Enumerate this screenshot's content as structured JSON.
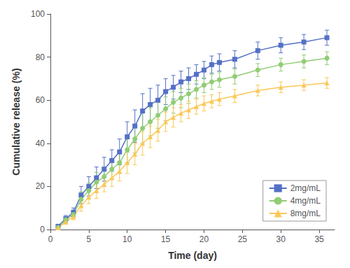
{
  "chart_data": {
    "type": "line",
    "xlabel": "Time (day)",
    "ylabel": "Cumulative release (%)",
    "xlim": [
      0,
      37
    ],
    "ylim": [
      0,
      100
    ],
    "xticks": [
      0,
      5,
      10,
      15,
      20,
      25,
      30,
      35
    ],
    "yticks": [
      0,
      20,
      40,
      60,
      80,
      100
    ],
    "grid": false,
    "legend": "lower right",
    "series": [
      {
        "name": "2mg/mL",
        "marker": "square",
        "x": [
          1,
          2,
          3,
          4,
          5,
          6,
          7,
          8,
          9,
          10,
          11,
          12,
          13,
          14,
          15,
          16,
          17,
          18,
          19,
          20,
          21,
          22,
          24,
          27,
          30,
          33,
          36
        ],
        "values": [
          1.5,
          5.0,
          8.0,
          16.0,
          20.0,
          24.0,
          28.0,
          32.0,
          36.0,
          43.0,
          48.0,
          55.0,
          58.0,
          60.0,
          64.0,
          66.0,
          68.5,
          70.0,
          72.0,
          74.0,
          76.5,
          77.5,
          79.0,
          83.0,
          85.5,
          87.0,
          89.0
        ],
        "yerr": [
          0.5,
          1.5,
          2.0,
          4.0,
          4.5,
          5.0,
          5.5,
          5.0,
          6.0,
          7.0,
          7.5,
          8.0,
          7.5,
          7.0,
          6.0,
          5.5,
          5.0,
          5.0,
          4.5,
          4.0,
          4.0,
          4.0,
          4.0,
          4.0,
          3.5,
          3.5,
          3.5
        ]
      },
      {
        "name": "4mg/mL",
        "marker": "circle",
        "x": [
          1,
          2,
          3,
          4,
          5,
          6,
          7,
          8,
          9,
          10,
          11,
          12,
          13,
          14,
          15,
          16,
          17,
          18,
          19,
          20,
          21,
          22,
          24,
          27,
          30,
          33,
          36
        ],
        "values": [
          1.0,
          4.5,
          7.0,
          14.0,
          18.0,
          22.0,
          24.5,
          28.0,
          31.0,
          37.0,
          42.0,
          47.0,
          50.0,
          53.0,
          56.0,
          59.0,
          61.0,
          63.0,
          65.0,
          67.0,
          68.5,
          69.5,
          71.0,
          74.0,
          76.5,
          78.0,
          79.5
        ],
        "yerr": [
          0.5,
          1.5,
          2.0,
          3.5,
          3.5,
          4.5,
          4.5,
          4.5,
          5.0,
          6.0,
          6.5,
          7.0,
          6.5,
          6.0,
          5.5,
          5.0,
          4.5,
          4.5,
          4.0,
          3.5,
          3.5,
          3.5,
          3.5,
          3.0,
          3.0,
          3.0,
          3.0
        ]
      },
      {
        "name": "8mg/mL",
        "marker": "triangle",
        "x": [
          1,
          2,
          3,
          4,
          5,
          6,
          7,
          8,
          9,
          10,
          11,
          12,
          13,
          14,
          15,
          16,
          17,
          18,
          19,
          20,
          21,
          22,
          24,
          27,
          30,
          33,
          36
        ],
        "values": [
          0.8,
          3.5,
          6.0,
          11.0,
          15.0,
          18.0,
          21.0,
          24.0,
          27.0,
          31.0,
          35.0,
          40.0,
          43.0,
          46.0,
          50.0,
          52.0,
          54.0,
          55.5,
          57.0,
          58.5,
          59.5,
          60.5,
          62.0,
          64.5,
          66.0,
          67.0,
          68.0
        ],
        "yerr": [
          0.5,
          1.0,
          1.5,
          2.5,
          3.0,
          3.5,
          3.5,
          4.0,
          4.5,
          5.0,
          5.0,
          5.5,
          5.0,
          5.0,
          4.5,
          4.5,
          4.0,
          4.0,
          3.5,
          3.5,
          3.0,
          3.0,
          3.0,
          2.5,
          2.5,
          2.5,
          2.5
        ]
      }
    ]
  }
}
